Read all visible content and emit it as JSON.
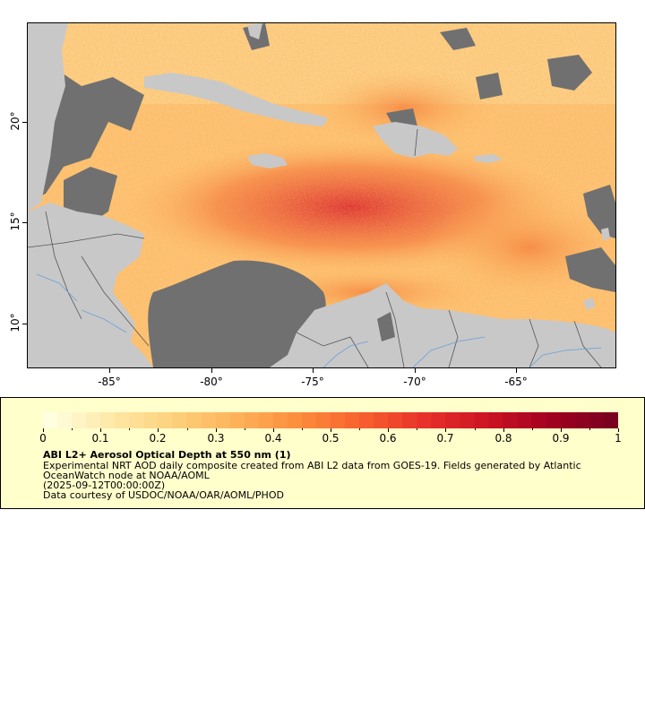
{
  "map": {
    "lat_ticks": [
      "10°",
      "15°",
      "20°"
    ],
    "lon_ticks": [
      "-85°",
      "-80°",
      "-75°",
      "-70°",
      "-65°"
    ],
    "colors": {
      "land": "#c8c8c8",
      "nodata": "#707070",
      "river": "#6a9fd8",
      "border": "#555555"
    }
  },
  "legend": {
    "colorbar_labels": [
      "0",
      "0.1",
      "0.2",
      "0.3",
      "0.4",
      "0.5",
      "0.6",
      "0.7",
      "0.8",
      "0.9",
      "1"
    ],
    "title": "ABI L2+ Aerosol Optical Depth at 550 nm (1)",
    "line1": "Experimental NRT AOD daily composite created from ABI L2 data from GOES-19. Fields generated by Atlantic",
    "line2": "OceanWatch node at NOAA/AOML",
    "line3": "(2025-09-12T00:00:00Z)",
    "line4": "Data courtesy of USDOC/NOAA/OAR/AOML/PHOD",
    "range": [
      0,
      1
    ],
    "colormap": [
      "#ffffe0",
      "#fee8a6",
      "#fdd07a",
      "#fdb25a",
      "#fc8d3c",
      "#f7602d",
      "#e8312a",
      "#cc1423",
      "#a3001f",
      "#7a0020"
    ]
  }
}
